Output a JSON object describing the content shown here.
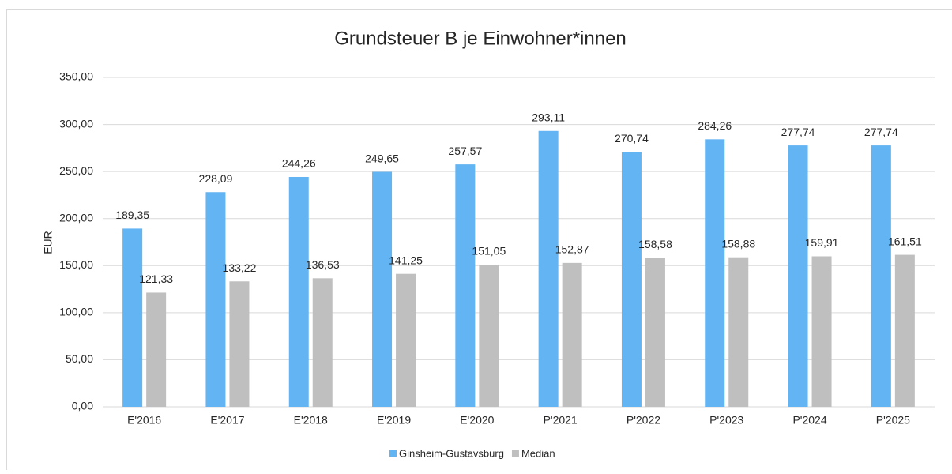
{
  "chart_data": {
    "type": "bar",
    "title": "Grundsteuer B je Einwohner*innen",
    "y_label": "EUR",
    "categories": [
      "E'2016",
      "E'2017",
      "E'2018",
      "E'2019",
      "E'2020",
      "P'2021",
      "P'2022",
      "P'2023",
      "P'2024",
      "P'2025"
    ],
    "series": [
      {
        "name": "Ginsheim-Gustavsburg",
        "color": "#63b4f3",
        "values": [
          189.35,
          228.09,
          244.26,
          249.65,
          257.57,
          293.11,
          270.74,
          284.26,
          277.74,
          277.74
        ],
        "value_labels": [
          "189,35",
          "228,09",
          "244,26",
          "249,65",
          "257,57",
          "293,11",
          "270,74",
          "284,26",
          "277,74",
          "277,74"
        ]
      },
      {
        "name": "Median",
        "color": "#bfbfbf",
        "values": [
          121.33,
          133.22,
          136.53,
          141.25,
          151.05,
          152.87,
          158.58,
          158.88,
          159.91,
          161.51
        ],
        "value_labels": [
          "121,33",
          "133,22",
          "136,53",
          "141,25",
          "151,05",
          "152,87",
          "158,58",
          "158,88",
          "159,91",
          "161,51"
        ]
      }
    ],
    "ylim": [
      0,
      350
    ],
    "yticks": [
      {
        "value": 0,
        "label": "0,00"
      },
      {
        "value": 50,
        "label": "50,00"
      },
      {
        "value": 100,
        "label": "100,00"
      },
      {
        "value": 150,
        "label": "150,00"
      },
      {
        "value": 200,
        "label": "200,00"
      },
      {
        "value": 250,
        "label": "250,00"
      },
      {
        "value": 300,
        "label": "300,00"
      },
      {
        "value": 350,
        "label": "350,00"
      }
    ],
    "grid": true,
    "legend": "bottom"
  }
}
